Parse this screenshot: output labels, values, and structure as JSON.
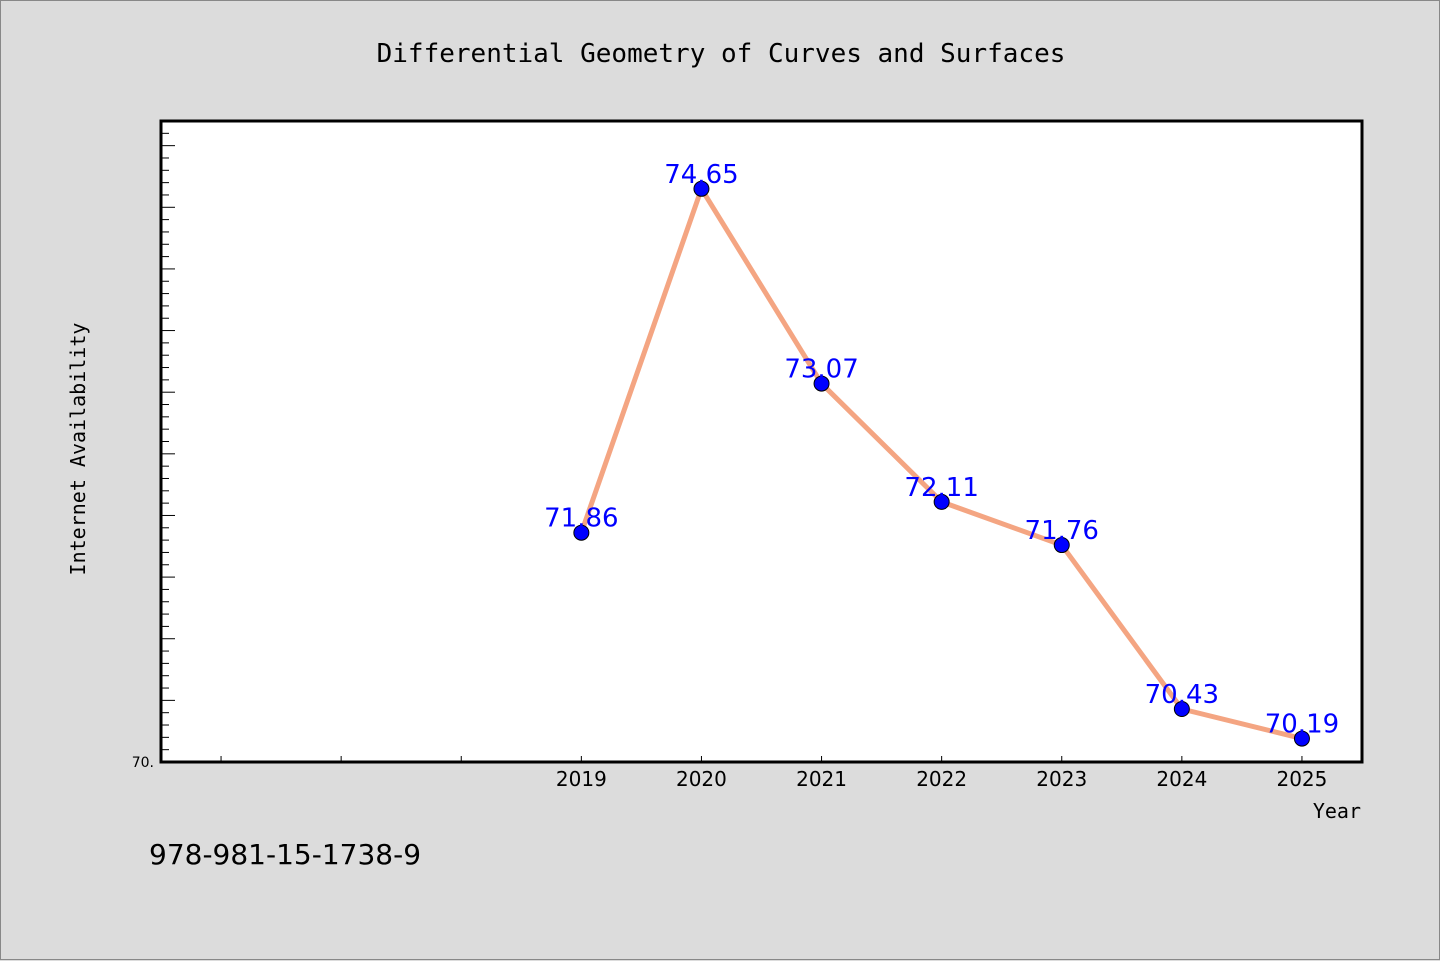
{
  "chart_data": {
    "type": "line",
    "title": "Differential Geometry of Curves and Surfaces",
    "xlabel": "Year",
    "ylabel": "Internet Availability",
    "categories": [
      "2019",
      "2020",
      "2021",
      "2022",
      "2023",
      "2024",
      "2025"
    ],
    "series": [
      {
        "values": [
          71.86,
          74.65,
          73.07,
          72.11,
          71.76,
          70.43,
          70.19
        ],
        "labels": [
          "71.86",
          "74.65",
          "73.07",
          "72.11",
          "71.76",
          "70.43",
          "70.19"
        ],
        "line_color": "#f4a582",
        "marker_color": "#0000ff"
      }
    ],
    "x_range": [
      2015.5,
      2025.5
    ],
    "ylim": [
      70.0,
      75.2
    ],
    "y_axis_min_label": "70.",
    "grid": false,
    "legend": "none",
    "label_color": "#0000ff"
  },
  "footer_text": "978-981-15-1738-9"
}
